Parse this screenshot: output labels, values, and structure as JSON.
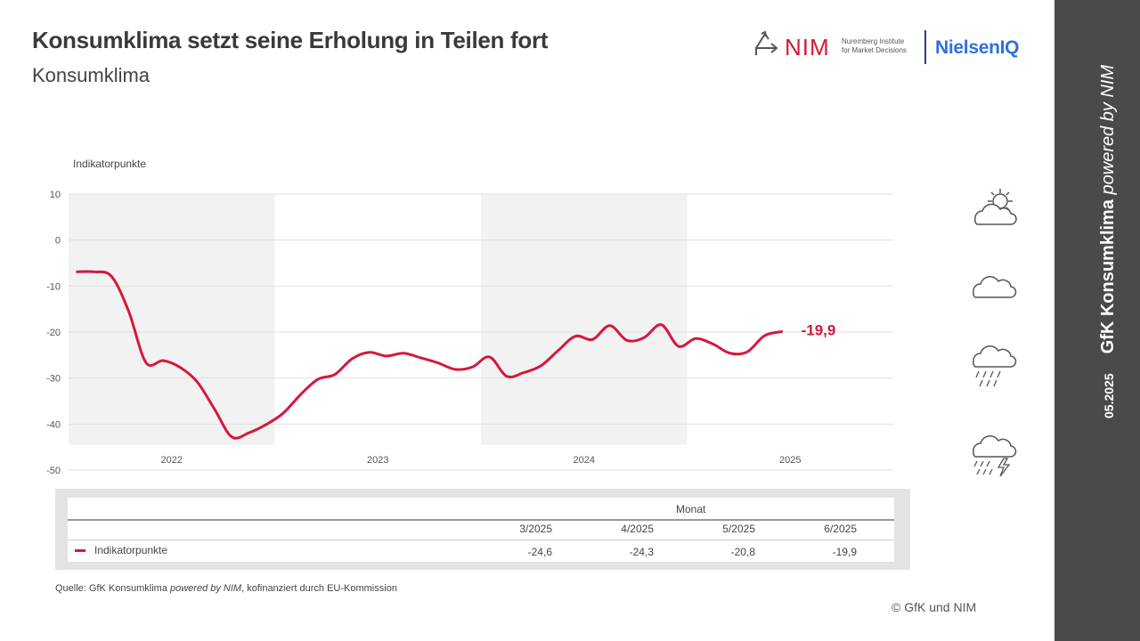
{
  "header": {
    "title": "Konsumklima setzt seine Erholung in Teilen fort",
    "subtitle": "Konsumklima"
  },
  "logos": {
    "nim_name": "NIM",
    "nim_subtitle": "Nuremberg Institute\nfor Market Decisions",
    "nielsen_name": "NielsenIQ"
  },
  "sidebar": {
    "date": "05.2025",
    "title_bold": "GfK Konsumklima",
    "title_italic": "powered by NIM"
  },
  "colors": {
    "series": "#d5183c",
    "band": "#f2f2f2",
    "sidebar": "#4a4a4a"
  },
  "weather_icons": [
    "sun-cloud-icon",
    "cloud-icon",
    "rain-cloud-icon",
    "thunderstorm-icon"
  ],
  "chart_data": {
    "type": "line",
    "ylabel": "Indikatorpunkte",
    "ylim": [
      -50,
      10
    ],
    "yticks": [
      10,
      0,
      -10,
      -20,
      -30,
      -40,
      -50
    ],
    "year_labels": [
      "2022",
      "2023",
      "2024",
      "2025"
    ],
    "shaded_years": [
      "2022",
      "2024"
    ],
    "grid": true,
    "end_label": "-19,9",
    "series": [
      {
        "name": "Indikatorpunkte",
        "x": [
          "2022-01",
          "2022-02",
          "2022-03",
          "2022-04",
          "2022-05",
          "2022-06",
          "2022-07",
          "2022-08",
          "2022-09",
          "2022-10",
          "2022-11",
          "2022-12",
          "2023-01",
          "2023-02",
          "2023-03",
          "2023-04",
          "2023-05",
          "2023-06",
          "2023-07",
          "2023-08",
          "2023-09",
          "2023-10",
          "2023-11",
          "2023-12",
          "2024-01",
          "2024-02",
          "2024-03",
          "2024-04",
          "2024-05",
          "2024-06",
          "2024-07",
          "2024-08",
          "2024-09",
          "2024-10",
          "2024-11",
          "2024-12",
          "2025-01",
          "2025-02",
          "2025-03",
          "2025-04",
          "2025-05",
          "2025-06"
        ],
        "values": [
          -6.9,
          -6.9,
          -7.9,
          -15.5,
          -26.6,
          -26.2,
          -27.7,
          -30.9,
          -36.8,
          -42.8,
          -41.9,
          -40.1,
          -37.6,
          -33.6,
          -30.3,
          -29.2,
          -25.8,
          -24.4,
          -25.2,
          -24.6,
          -25.6,
          -26.7,
          -28.1,
          -27.6,
          -25.4,
          -29.6,
          -28.8,
          -27.3,
          -24.0,
          -20.9,
          -21.6,
          -18.6,
          -21.8,
          -21.2,
          -18.4,
          -23.1,
          -21.4,
          -22.6,
          -24.6,
          -24.3,
          -20.8,
          -19.9
        ]
      }
    ]
  },
  "table": {
    "group_header": "Monat",
    "columns": [
      "3/2025",
      "4/2025",
      "5/2025",
      "6/2025"
    ],
    "row_label": "Indikatorpunkte",
    "row_values": [
      "-24,6",
      "-24,3",
      "-20,8",
      "-19,9"
    ]
  },
  "footer": {
    "source_prefix": "Quelle: GfK Konsumklima ",
    "source_italic": "powered by NIM",
    "source_suffix": ", kofinanziert durch EU-Kommission",
    "copyright": "© GfK und NIM"
  }
}
